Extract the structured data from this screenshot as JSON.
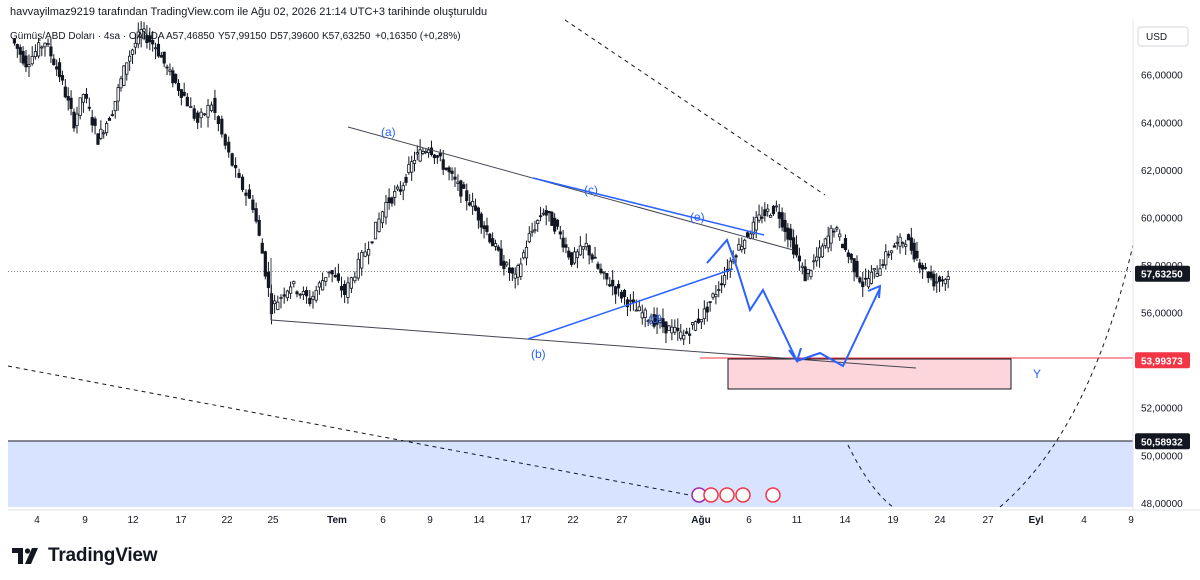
{
  "header": {
    "title": "havvayilmaz9219 tarafından TradingView.com ile Ağu 02, 2026 21:14 UTC+3 tarihinde oluşturuldu"
  },
  "brand": {
    "name": "TradingView",
    "icon": "tradingview-logo-icon"
  },
  "colors": {
    "up": "#131722",
    "wave": "#2962ff",
    "support": "#f23645",
    "zone_fill": "#fcd6da",
    "blue_zone": "#d7e3ff",
    "trend": "#434651"
  },
  "chart_data": {
    "type": "candlestick",
    "legend": {
      "symbol": "Gümüş/ABD Doları · 4sa · OANDA",
      "open": "A57,46850",
      "high": "Y57,99150",
      "low": "D57,39600",
      "close": "K57,63250",
      "change": "+0,16350 (+0,28%)"
    },
    "currency_label": "USD",
    "ylim": [
      47.7,
      68.3
    ],
    "y_ticks": [
      "66,00000",
      "64,00000",
      "62,00000",
      "60,00000",
      "58,00000",
      "56,00000",
      "54,00000",
      "52,00000",
      "50,00000",
      "48,00000"
    ],
    "y_tick_values": [
      66,
      64,
      62,
      60,
      58,
      56,
      54,
      52,
      50,
      48
    ],
    "x_ticks": [
      "4",
      "9",
      "12",
      "17",
      "22",
      "25",
      "Tem",
      "6",
      "9",
      "14",
      "17",
      "22",
      "27",
      "Ağu",
      "6",
      "11",
      "14",
      "19",
      "24",
      "27",
      "Eyl",
      "4",
      "9"
    ],
    "price_labels": [
      {
        "value": 57.6325,
        "text": "57,63250",
        "style": "last"
      },
      {
        "value": 53.99373,
        "text": "53,99373",
        "style": "support"
      },
      {
        "value": 50.58932,
        "text": "50,58932",
        "style": "last"
      }
    ],
    "wave_labels": [
      "(a)",
      "(b)",
      "(c)",
      "(d)",
      "(e)"
    ],
    "zone_label": "Y",
    "price_path": [
      [
        -0.5,
        67.5
      ],
      [
        -0.2,
        66.5
      ],
      [
        0.2,
        67.4
      ],
      [
        0.5,
        66.0
      ],
      [
        0.8,
        64.0
      ],
      [
        1.0,
        65.2
      ],
      [
        1.3,
        63.3
      ],
      [
        1.6,
        64.5
      ],
      [
        1.9,
        66.6
      ],
      [
        2.2,
        67.8
      ],
      [
        2.5,
        67.2
      ],
      [
        2.8,
        66.0
      ],
      [
        3.1,
        65.1
      ],
      [
        3.4,
        64.0
      ],
      [
        3.7,
        64.8
      ],
      [
        4.0,
        63.0
      ],
      [
        4.3,
        61.5
      ],
      [
        4.6,
        60.5
      ],
      [
        4.8,
        58.5
      ],
      [
        5.0,
        56.2
      ],
      [
        5.3,
        57.2
      ],
      [
        5.6,
        56.5
      ],
      [
        5.9,
        57.8
      ],
      [
        6.2,
        56.8
      ],
      [
        6.5,
        58.0
      ],
      [
        6.8,
        59.2
      ],
      [
        7.1,
        60.6
      ],
      [
        7.4,
        61.2
      ],
      [
        7.7,
        62.5
      ],
      [
        8.0,
        63.0
      ],
      [
        8.3,
        62.2
      ],
      [
        8.6,
        61.3
      ],
      [
        8.9,
        60.5
      ],
      [
        9.2,
        59.4
      ],
      [
        9.5,
        58.2
      ],
      [
        9.8,
        57.4
      ],
      [
        10.1,
        59.2
      ],
      [
        10.4,
        60.3
      ],
      [
        10.7,
        59.5
      ],
      [
        11.0,
        58.2
      ],
      [
        11.3,
        58.8
      ],
      [
        11.6,
        57.6
      ],
      [
        11.9,
        57.0
      ],
      [
        12.2,
        56.1
      ],
      [
        12.5,
        55.5
      ],
      [
        12.8,
        55.0
      ],
      [
        13.1,
        56.0
      ],
      [
        13.4,
        57.1
      ],
      [
        13.7,
        58.4
      ],
      [
        14.0,
        59.3
      ],
      [
        14.3,
        60.1
      ],
      [
        14.6,
        60.4
      ],
      [
        14.9,
        59.0
      ],
      [
        15.2,
        57.5
      ],
      [
        15.5,
        58.5
      ],
      [
        15.8,
        59.6
      ],
      [
        16.1,
        58.4
      ],
      [
        16.4,
        57.2
      ],
      [
        16.7,
        57.8
      ],
      [
        17.0,
        58.7
      ],
      [
        17.3,
        59.1
      ],
      [
        17.6,
        58.1
      ],
      [
        17.9,
        57.3
      ],
      [
        18.2,
        57.5
      ]
    ]
  }
}
